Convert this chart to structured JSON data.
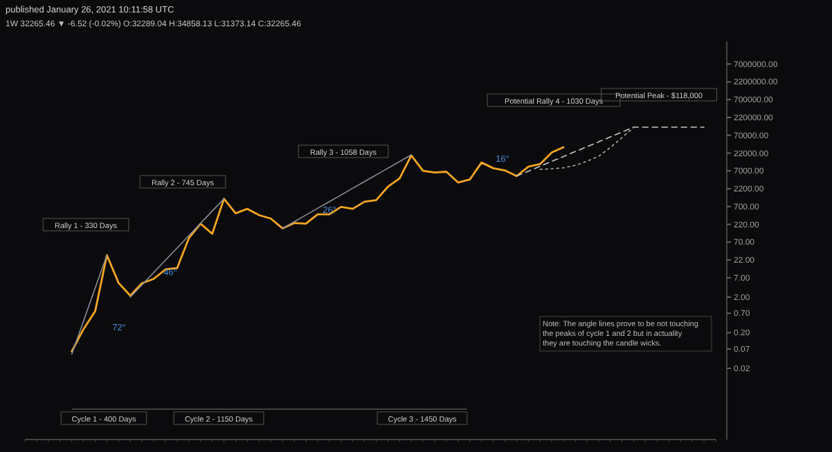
{
  "chart_data": {
    "type": "line",
    "title": "published January 26, 2021 10:11:58 UTC",
    "subtitle": "1W 32265.46 ▼ -6.52 (-0.02%) O:32289.04 H:34858.13 L:31373.14 C:32265.46",
    "log": "y",
    "line_style": "solid",
    "tick_labels": "y",
    "categories": [
      null,
      null,
      null,
      null,
      null,
      null,
      null,
      null,
      null,
      null,
      null,
      null,
      null,
      null,
      null,
      null,
      null,
      null,
      null,
      null,
      null,
      null,
      null,
      null,
      null,
      null,
      null,
      null,
      null,
      null,
      null,
      null,
      null,
      null,
      null,
      null,
      null,
      null,
      null,
      null,
      null,
      null,
      null,
      null,
      null,
      null,
      null,
      null,
      null,
      null,
      null,
      null,
      null,
      null,
      null,
      null,
      null,
      null,
      null,
      null
    ],
    "ylim": [
      0.0002,
      30000000
    ],
    "yticks": [
      {
        "value": 0.02,
        "label": "0.02"
      },
      {
        "value": 0.07,
        "label": "0.07"
      },
      {
        "value": 0.2,
        "label": "0.20"
      },
      {
        "value": 0.7,
        "label": "0.70"
      },
      {
        "value": 2,
        "label": "2.00"
      },
      {
        "value": 7,
        "label": "7.00"
      },
      {
        "value": 22,
        "label": "22.00"
      },
      {
        "value": 70,
        "label": "70.00"
      },
      {
        "value": 220,
        "label": "220.00"
      },
      {
        "value": 700,
        "label": "700.00"
      },
      {
        "value": 2200,
        "label": "2200.00"
      },
      {
        "value": 7000,
        "label": "7000.00"
      },
      {
        "value": 22000,
        "label": "22000.00"
      },
      {
        "value": 70000,
        "label": "70000.00"
      },
      {
        "value": 220000,
        "label": "220000.00"
      },
      {
        "value": 700000,
        "label": "700000.00"
      },
      {
        "value": 2200000,
        "label": "2200000.00"
      },
      {
        "value": 7000000,
        "label": "7000000.00"
      }
    ],
    "series": [
      {
        "color": "#f5a623",
        "values": [
          null,
          null,
          null,
          null,
          0.06,
          0.25,
          0.8,
          30,
          5,
          2.2,
          4.9,
          6.5,
          12,
          13,
          90,
          230,
          120,
          1150,
          450,
          600,
          400,
          320,
          170,
          240,
          230,
          420,
          420,
          680,
          600,
          950,
          1050,
          2500,
          4300,
          19000,
          7000,
          6300,
          6600,
          3300,
          4000,
          12000,
          8300,
          7200,
          5000,
          9200,
          10800,
          23000,
          32265,
          null,
          null,
          null,
          null,
          null,
          null,
          null,
          null,
          null,
          null,
          null,
          null,
          null
        ]
      },
      {
        "color": "#8a8f99",
        "values": [
          null,
          null,
          null,
          null,
          0.05,
          0.42,
          3.6,
          30,
          null,
          null,
          null,
          null,
          null,
          null,
          null,
          null,
          null,
          null,
          null,
          null,
          null,
          null,
          null,
          null,
          null,
          null,
          null,
          null,
          null,
          null,
          null,
          null,
          null,
          null,
          null,
          null,
          null,
          null,
          null,
          null,
          null,
          null,
          null,
          null,
          null,
          null,
          null,
          null,
          null,
          null,
          null,
          null,
          null,
          null,
          null,
          null,
          null,
          null,
          null,
          null
        ]
      },
      {
        "color": "#8a8f99",
        "values": [
          null,
          null,
          null,
          null,
          null,
          null,
          null,
          null,
          null,
          2,
          4.4,
          9.8,
          21.7,
          48,
          106,
          235,
          521,
          1150,
          null,
          null,
          null,
          null,
          null,
          null,
          null,
          null,
          null,
          null,
          null,
          null,
          null,
          null,
          null,
          null,
          null,
          null,
          null,
          null,
          null,
          null,
          null,
          null,
          null,
          null,
          null,
          null,
          null,
          null,
          null,
          null,
          null,
          null,
          null,
          null,
          null,
          null,
          null,
          null,
          null,
          null
        ]
      },
      {
        "color": "#8a8f99",
        "values": [
          null,
          null,
          null,
          null,
          null,
          null,
          null,
          null,
          null,
          null,
          null,
          null,
          null,
          null,
          null,
          null,
          null,
          null,
          null,
          null,
          null,
          null,
          170,
          262,
          403,
          621,
          956,
          1473,
          2268,
          3493,
          5380,
          8285,
          12760,
          19700,
          null,
          null,
          null,
          null,
          null,
          null,
          null,
          null,
          null,
          null,
          null,
          null,
          null,
          null,
          null,
          null,
          null,
          null,
          null,
          null,
          null,
          null,
          null,
          null,
          null,
          null
        ]
      },
      {
        "color": "#c8c8c8",
        "line_style": "dashed",
        "values": [
          null,
          null,
          null,
          null,
          null,
          null,
          null,
          null,
          null,
          null,
          null,
          null,
          null,
          null,
          null,
          null,
          null,
          null,
          null,
          null,
          null,
          null,
          null,
          null,
          null,
          null,
          null,
          null,
          null,
          null,
          null,
          null,
          null,
          null,
          null,
          null,
          null,
          null,
          null,
          null,
          null,
          null,
          5000,
          6860,
          9410,
          12910,
          17710,
          24300,
          33340,
          45740,
          62750,
          86090,
          118000,
          118000,
          118000,
          118000,
          118000,
          118000,
          118000,
          null
        ]
      },
      {
        "color": "#a9a9a9",
        "line_style": "dotted",
        "values": [
          null,
          null,
          null,
          null,
          null,
          null,
          null,
          null,
          null,
          null,
          null,
          null,
          null,
          null,
          null,
          null,
          null,
          null,
          null,
          null,
          null,
          null,
          null,
          null,
          null,
          null,
          null,
          null,
          null,
          null,
          null,
          null,
          null,
          null,
          null,
          null,
          null,
          null,
          null,
          null,
          null,
          null,
          null,
          null,
          7700,
          8000,
          8500,
          10000,
          13000,
          18000,
          31500,
          60000,
          118000,
          null,
          null,
          null,
          null,
          null,
          null,
          null
        ]
      }
    ],
    "annotations": [
      "Rally 1 - 330 Days",
      "Rally 2 - 745 Days",
      "Rally 3 - 1058 Days",
      "Potential Rally 4 - 1030 Days",
      "Potential Peak - $118,000",
      "72°",
      "46°",
      "26°",
      "16°",
      "Cycle 1 - 400 Days",
      "Cycle 2 - 1150 Days",
      "Cycle 3 - 1450 Days",
      "Note: The angle lines prove to be not touching the peaks of cycle 1 and 2 but in actuality they are touching the candle wicks."
    ]
  }
}
